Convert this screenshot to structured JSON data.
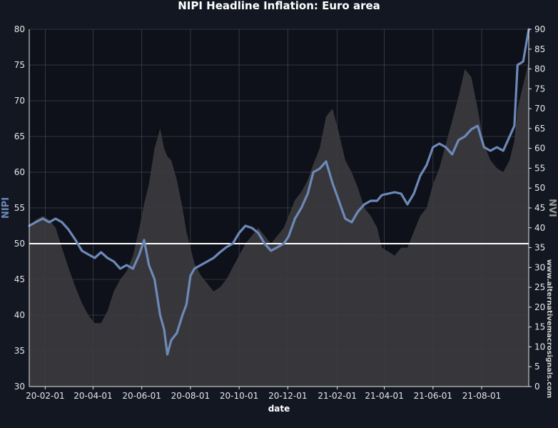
{
  "chart_data": {
    "type": "line",
    "title": "NIPI Headline Inflation: Euro area",
    "xlabel": "date",
    "ylabel": "NIPI",
    "y2label": "NVI",
    "watermark": "www.alternativemacrosignals.com",
    "ylim": [
      30,
      80
    ],
    "y2lim": [
      0,
      90
    ],
    "xlim": [
      "2020-01-12",
      "2021-09-29"
    ],
    "grid": true,
    "reference_line": 50,
    "x_ticks": [
      "20-02-01",
      "20-04-01",
      "20-06-01",
      "20-08-01",
      "20-10-01",
      "20-12-01",
      "21-02-01",
      "21-04-01",
      "21-06-01",
      "21-08-01"
    ],
    "y_ticks": [
      30,
      35,
      40,
      45,
      50,
      55,
      60,
      65,
      70,
      75,
      80
    ],
    "y2_ticks": [
      0,
      5,
      10,
      15,
      20,
      25,
      30,
      35,
      40,
      45,
      50,
      55,
      60,
      65,
      70,
      75,
      80,
      85,
      90
    ],
    "colors": {
      "background": "#131722",
      "nipi_line": "#6d89b9",
      "nvi_area": "#3c3c3f",
      "reference": "#ffffff",
      "grid": "#4a4e58"
    },
    "series": [
      {
        "name": "NIPI",
        "axis": "left",
        "points": [
          [
            "2020-01-12",
            52.5
          ],
          [
            "2020-01-20",
            53.0
          ],
          [
            "2020-01-29",
            53.5
          ],
          [
            "2020-02-06",
            53.0
          ],
          [
            "2020-02-14",
            53.5
          ],
          [
            "2020-02-22",
            53.0
          ],
          [
            "2020-03-01",
            52.0
          ],
          [
            "2020-03-10",
            50.5
          ],
          [
            "2020-03-18",
            49.0
          ],
          [
            "2020-03-26",
            48.5
          ],
          [
            "2020-04-03",
            48.0
          ],
          [
            "2020-04-11",
            48.8
          ],
          [
            "2020-04-19",
            48.0
          ],
          [
            "2020-04-27",
            47.5
          ],
          [
            "2020-05-05",
            46.5
          ],
          [
            "2020-05-13",
            47.0
          ],
          [
            "2020-05-21",
            46.5
          ],
          [
            "2020-05-29",
            48.5
          ],
          [
            "2020-06-04",
            50.5
          ],
          [
            "2020-06-10",
            47.0
          ],
          [
            "2020-06-17",
            45.0
          ],
          [
            "2020-06-24",
            40.0
          ],
          [
            "2020-06-29",
            38.0
          ],
          [
            "2020-07-03",
            34.5
          ],
          [
            "2020-07-08",
            36.5
          ],
          [
            "2020-07-15",
            37.5
          ],
          [
            "2020-07-22",
            40.0
          ],
          [
            "2020-07-27",
            41.5
          ],
          [
            "2020-08-01",
            45.5
          ],
          [
            "2020-08-06",
            46.5
          ],
          [
            "2020-08-14",
            47.0
          ],
          [
            "2020-08-22",
            47.5
          ],
          [
            "2020-08-30",
            48.0
          ],
          [
            "2020-09-07",
            48.8
          ],
          [
            "2020-09-15",
            49.5
          ],
          [
            "2020-09-23",
            50.0
          ],
          [
            "2020-10-01",
            51.5
          ],
          [
            "2020-10-09",
            52.5
          ],
          [
            "2020-10-17",
            52.2
          ],
          [
            "2020-10-25",
            51.5
          ],
          [
            "2020-11-02",
            50.0
          ],
          [
            "2020-11-10",
            49.0
          ],
          [
            "2020-11-18",
            49.5
          ],
          [
            "2020-11-26",
            50.0
          ],
          [
            "2020-12-02",
            51.0
          ],
          [
            "2020-12-10",
            53.5
          ],
          [
            "2020-12-18",
            55.0
          ],
          [
            "2020-12-26",
            57.0
          ],
          [
            "2021-01-02",
            60.0
          ],
          [
            "2021-01-10",
            60.5
          ],
          [
            "2021-01-18",
            61.5
          ],
          [
            "2021-01-26",
            58.5
          ],
          [
            "2021-02-03",
            56.0
          ],
          [
            "2021-02-11",
            53.5
          ],
          [
            "2021-02-19",
            53.0
          ],
          [
            "2021-02-27",
            54.5
          ],
          [
            "2021-03-07",
            55.5
          ],
          [
            "2021-03-15",
            56.0
          ],
          [
            "2021-03-23",
            56.0
          ],
          [
            "2021-03-29",
            56.8
          ],
          [
            "2021-04-06",
            57.0
          ],
          [
            "2021-04-14",
            57.2
          ],
          [
            "2021-04-22",
            57.0
          ],
          [
            "2021-04-30",
            55.5
          ],
          [
            "2021-05-08",
            57.0
          ],
          [
            "2021-05-16",
            59.5
          ],
          [
            "2021-05-24",
            61.0
          ],
          [
            "2021-06-01",
            63.5
          ],
          [
            "2021-06-09",
            64.0
          ],
          [
            "2021-06-17",
            63.5
          ],
          [
            "2021-06-25",
            62.5
          ],
          [
            "2021-07-03",
            64.5
          ],
          [
            "2021-07-11",
            65.0
          ],
          [
            "2021-07-19",
            66.0
          ],
          [
            "2021-07-27",
            66.5
          ],
          [
            "2021-08-04",
            63.5
          ],
          [
            "2021-08-12",
            63.0
          ],
          [
            "2021-08-20",
            63.5
          ],
          [
            "2021-08-28",
            63.0
          ],
          [
            "2021-09-05",
            65.0
          ],
          [
            "2021-09-11",
            66.5
          ],
          [
            "2021-09-15",
            75.0
          ],
          [
            "2021-09-22",
            75.5
          ],
          [
            "2021-09-29",
            80.0
          ]
        ]
      },
      {
        "name": "NVI",
        "axis": "right",
        "style": "area",
        "points": [
          [
            "2020-01-12",
            40
          ],
          [
            "2020-01-20",
            42
          ],
          [
            "2020-01-29",
            43
          ],
          [
            "2020-02-06",
            42
          ],
          [
            "2020-02-14",
            40
          ],
          [
            "2020-02-22",
            35
          ],
          [
            "2020-03-01",
            30
          ],
          [
            "2020-03-10",
            25
          ],
          [
            "2020-03-18",
            21
          ],
          [
            "2020-03-26",
            18
          ],
          [
            "2020-04-03",
            16
          ],
          [
            "2020-04-11",
            16
          ],
          [
            "2020-04-19",
            19
          ],
          [
            "2020-04-27",
            24
          ],
          [
            "2020-05-05",
            27
          ],
          [
            "2020-05-13",
            29
          ],
          [
            "2020-05-21",
            33
          ],
          [
            "2020-05-29",
            40
          ],
          [
            "2020-06-04",
            46
          ],
          [
            "2020-06-10",
            51
          ],
          [
            "2020-06-17",
            60
          ],
          [
            "2020-06-24",
            65
          ],
          [
            "2020-06-29",
            60
          ],
          [
            "2020-07-03",
            58
          ],
          [
            "2020-07-08",
            57
          ],
          [
            "2020-07-15",
            52
          ],
          [
            "2020-07-22",
            45
          ],
          [
            "2020-07-27",
            39
          ],
          [
            "2020-08-01",
            35
          ],
          [
            "2020-08-06",
            31
          ],
          [
            "2020-08-14",
            28
          ],
          [
            "2020-08-22",
            26
          ],
          [
            "2020-08-30",
            24
          ],
          [
            "2020-09-07",
            25
          ],
          [
            "2020-09-15",
            27
          ],
          [
            "2020-09-23",
            30
          ],
          [
            "2020-10-01",
            33
          ],
          [
            "2020-10-09",
            36
          ],
          [
            "2020-10-17",
            38
          ],
          [
            "2020-10-25",
            40
          ],
          [
            "2020-11-02",
            38
          ],
          [
            "2020-11-10",
            36
          ],
          [
            "2020-11-18",
            38
          ],
          [
            "2020-11-26",
            40
          ],
          [
            "2020-12-02",
            43
          ],
          [
            "2020-12-10",
            47
          ],
          [
            "2020-12-18",
            49
          ],
          [
            "2020-12-26",
            52
          ],
          [
            "2021-01-02",
            56
          ],
          [
            "2021-01-10",
            60
          ],
          [
            "2021-01-18",
            68
          ],
          [
            "2021-01-26",
            70
          ],
          [
            "2021-02-03",
            64
          ],
          [
            "2021-02-11",
            57
          ],
          [
            "2021-02-19",
            54
          ],
          [
            "2021-02-27",
            50
          ],
          [
            "2021-03-07",
            45
          ],
          [
            "2021-03-15",
            43
          ],
          [
            "2021-03-23",
            40
          ],
          [
            "2021-03-29",
            35
          ],
          [
            "2021-04-06",
            34
          ],
          [
            "2021-04-14",
            33
          ],
          [
            "2021-04-22",
            35
          ],
          [
            "2021-04-30",
            35
          ],
          [
            "2021-05-08",
            39
          ],
          [
            "2021-05-16",
            43
          ],
          [
            "2021-05-24",
            45
          ],
          [
            "2021-06-01",
            51
          ],
          [
            "2021-06-09",
            55
          ],
          [
            "2021-06-17",
            61
          ],
          [
            "2021-06-25",
            67
          ],
          [
            "2021-07-03",
            73
          ],
          [
            "2021-07-11",
            80
          ],
          [
            "2021-07-19",
            78
          ],
          [
            "2021-07-27",
            70
          ],
          [
            "2021-08-04",
            61
          ],
          [
            "2021-08-12",
            57
          ],
          [
            "2021-08-20",
            55
          ],
          [
            "2021-08-28",
            54
          ],
          [
            "2021-09-05",
            57
          ],
          [
            "2021-09-11",
            62
          ],
          [
            "2021-09-15",
            70
          ],
          [
            "2021-09-22",
            76
          ],
          [
            "2021-09-29",
            82
          ]
        ]
      }
    ]
  }
}
